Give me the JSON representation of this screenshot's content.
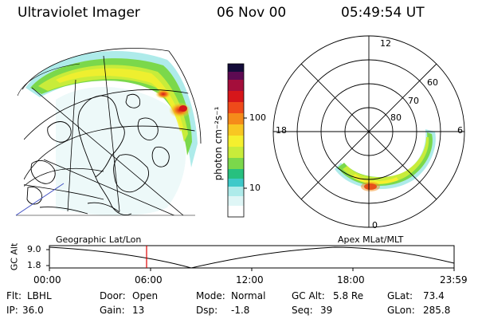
{
  "header": {
    "instrument": "Ultraviolet Imager",
    "date": "06 Nov 00",
    "time": "05:49:54 UT"
  },
  "colorbar": {
    "unit_label": "photon cm⁻²s⁻¹",
    "ticks": [
      "100",
      "10"
    ],
    "colors": [
      "#ffffff",
      "#dff6f6",
      "#aeebea",
      "#3ec9c9",
      "#27c07f",
      "#7bd84b",
      "#c8ec3a",
      "#f5f02e",
      "#f8c722",
      "#f58b1a",
      "#ef4a1a",
      "#d6161a",
      "#a40e3b",
      "#5d0a52",
      "#140c3a"
    ]
  },
  "polar_plot": {
    "hour_labels": {
      "top": "12",
      "left": "18",
      "right": "6",
      "bottom": "0"
    },
    "lat_labels": [
      "60",
      "70",
      "80"
    ]
  },
  "timeline": {
    "left_label": "Geographic Lat/Lon",
    "right_label": "Apex MLat/MLT",
    "y_axis_label": "GC Alt",
    "y_ticks": [
      "9.0",
      "1.8"
    ],
    "x_ticks": [
      "00:00",
      "06:00",
      "12:00",
      "18:00",
      "23:59"
    ],
    "cursor_color": "#e00000"
  },
  "info": {
    "flt_label": "Flt:",
    "flt_value": "LBHL",
    "door_label": "Door:",
    "door_value": "Open",
    "mode_label": "Mode:",
    "mode_value": "Normal",
    "gcalt_label": "GC Alt:",
    "gcalt_value": "5.8 Re",
    "glat_label": "GLat:",
    "glat_value": "73.4",
    "ip_label": "IP:",
    "ip_value": "36.0",
    "gain_label": "Gain:",
    "gain_value": "13",
    "dsp_label": "Dsp:",
    "dsp_value": "-1.8",
    "seq_label": "Seq:",
    "seq_value": "39",
    "glon_label": "GLon:",
    "glon_value": "285.8"
  }
}
